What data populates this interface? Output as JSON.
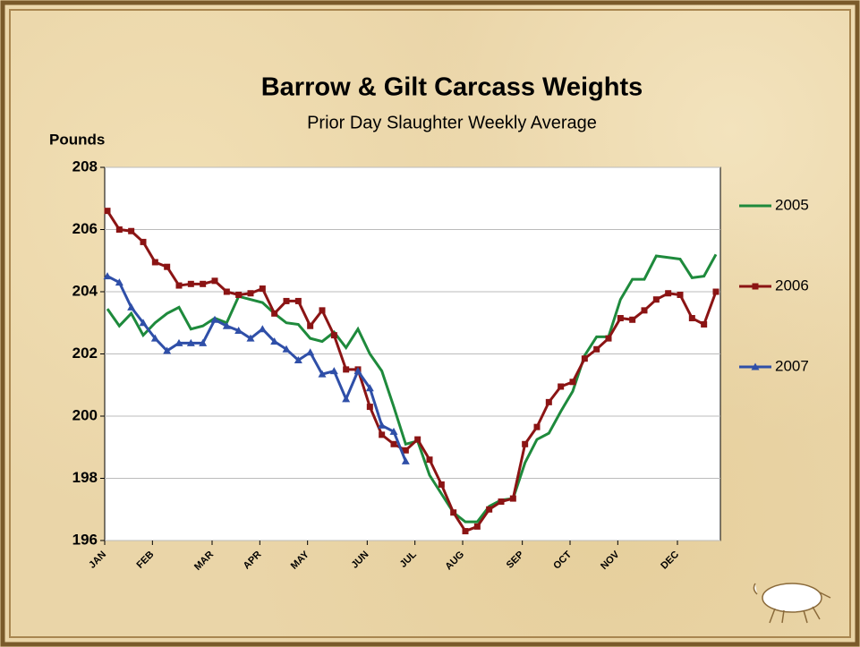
{
  "chart_data": {
    "type": "line",
    "title": "Barrow & Gilt Carcass Weights",
    "subtitle": "Prior Day Slaughter Weekly Average",
    "y_label": "Pounds",
    "categories": [
      "JAN",
      null,
      null,
      null,
      "FEB",
      null,
      null,
      null,
      null,
      "MAR",
      null,
      null,
      null,
      "APR",
      null,
      null,
      null,
      "MAY",
      null,
      null,
      null,
      null,
      "JUN",
      null,
      null,
      null,
      "JUL",
      null,
      null,
      null,
      "AUG",
      null,
      null,
      null,
      null,
      "SEP",
      null,
      null,
      null,
      "OCT",
      null,
      null,
      null,
      "NOV",
      null,
      null,
      null,
      null,
      "DEC",
      null,
      null,
      null
    ],
    "ylim": [
      196,
      208
    ],
    "yticks": [
      196,
      198,
      200,
      202,
      204,
      206,
      208
    ],
    "grid": true,
    "legend": "right",
    "series": [
      {
        "name": "2005",
        "color": "#1e8a3c",
        "marker": "none",
        "values": [
          203.45,
          202.9,
          203.3,
          202.6,
          203.0,
          203.3,
          203.5,
          202.8,
          202.9,
          203.15,
          203.0,
          203.85,
          203.75,
          203.65,
          203.3,
          203.0,
          202.95,
          202.5,
          202.4,
          202.7,
          202.2,
          202.8,
          202.0,
          201.45,
          200.3,
          199.1,
          199.2,
          198.1,
          197.5,
          196.9,
          196.6,
          196.6,
          197.1,
          197.3,
          197.35,
          198.5,
          199.25,
          199.45,
          200.15,
          200.8,
          201.95,
          202.55,
          202.55,
          203.75,
          204.4,
          204.4,
          205.15,
          205.1,
          205.05,
          204.45,
          204.5,
          205.2
        ]
      },
      {
        "name": "2006",
        "color": "#8b1414",
        "marker": "square",
        "values": [
          206.6,
          206.0,
          205.95,
          205.6,
          204.95,
          204.8,
          204.2,
          204.25,
          204.25,
          204.35,
          204.0,
          203.9,
          203.95,
          204.1,
          203.3,
          203.7,
          203.7,
          202.9,
          203.4,
          202.6,
          201.5,
          201.5,
          200.3,
          199.4,
          199.1,
          198.9,
          199.25,
          198.6,
          197.8,
          196.9,
          196.3,
          196.45,
          197.0,
          197.25,
          197.35,
          199.1,
          199.65,
          200.45,
          200.95,
          201.1,
          201.85,
          202.15,
          202.5,
          203.15,
          203.1,
          203.4,
          203.75,
          203.95,
          203.9,
          203.15,
          202.95,
          204.0
        ]
      },
      {
        "name": "2007",
        "color": "#2f4fa8",
        "marker": "triangle",
        "values": [
          204.5,
          204.3,
          203.5,
          203.0,
          202.5,
          202.1,
          202.35,
          202.35,
          202.35,
          203.1,
          202.9,
          202.75,
          202.5,
          202.8,
          202.4,
          202.15,
          201.8,
          202.05,
          201.35,
          201.45,
          200.55,
          201.45,
          200.9,
          199.7,
          199.5,
          198.55,
          null,
          null,
          null,
          null,
          null,
          null,
          null,
          null,
          null,
          null,
          null,
          null,
          null,
          null,
          null,
          null,
          null,
          null,
          null,
          null,
          null,
          null,
          null,
          null,
          null,
          null
        ]
      }
    ]
  }
}
